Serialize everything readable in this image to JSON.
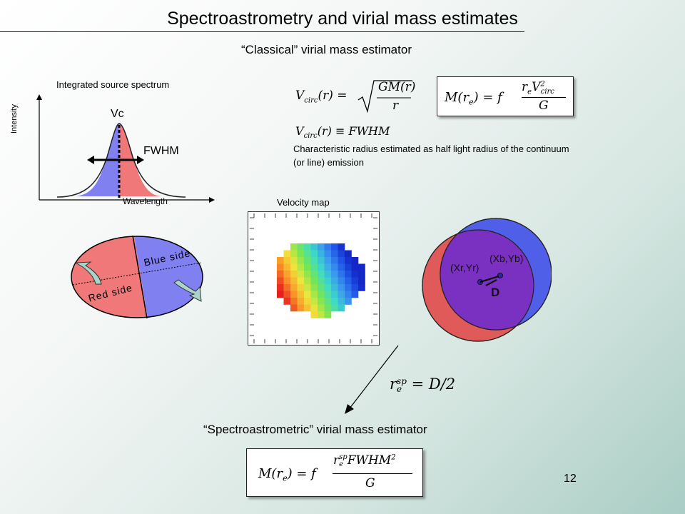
{
  "slide": {
    "title": "Spectroastrometry and virial mass estimates",
    "subtitle": "“Classical” virial mass estimator",
    "page_number": "12"
  },
  "spectrum": {
    "title": "Integrated source spectrum",
    "y_label": "Intensity",
    "x_label": "Wavelength",
    "vc_label": "Vc",
    "fwhm_label": "FWHM"
  },
  "classical": {
    "eq_vcirc_lhs": "V",
    "eq_vcirc_sub": "circ",
    "eq_vcirc_arg": "(r) = ",
    "eq_vcirc_num": "GM(r)",
    "eq_vcirc_den": "r",
    "eq_fwhm": "V",
    "eq_fwhm_sub": "circ",
    "eq_fwhm_rest": "(r) ≡ FWHM",
    "eq_mass_lhs": "M(r",
    "eq_mass_lhs_sub": "e",
    "eq_mass_mid": ") = f",
    "eq_mass_num_r": "r",
    "eq_mass_num_rsub": "e",
    "eq_mass_num_v": "V",
    "eq_mass_num_vsup": "2",
    "eq_mass_num_vsub": "circ",
    "eq_mass_den": "G",
    "note": "Characteristic radius estimated as half light radius of the continuum (or line) emission"
  },
  "velocity_map": {
    "title": "Velocity map"
  },
  "disk": {
    "blue_label": "Blue side",
    "red_label": "Red side"
  },
  "photocenters": {
    "red_label": "(Xr,Yr)",
    "blue_label": "(Xb,Yb)",
    "d_label": "D"
  },
  "spectroastrometric": {
    "eq_r": "r",
    "eq_r_sup": "sp",
    "eq_r_sub": "e",
    "eq_r_rest": " = D/2",
    "label": "“Spectroastrometric” virial mass estimator",
    "eq_mass_lhs": "M(r",
    "eq_mass_lhs_sub": "e",
    "eq_mass_mid": ") = f",
    "eq_mass_num_r": "r",
    "eq_mass_num_rsup": "sp",
    "eq_mass_num_rsub": "e",
    "eq_mass_num_rest": "FWHM",
    "eq_mass_num_sup2": "2",
    "eq_mass_den": "G"
  },
  "colors": {
    "blue_side": "#8080f0",
    "red_side": "#f07878",
    "circle_red": "#e05a5a",
    "circle_blue": "#4f5fe8",
    "overlap": "#7a30c0"
  }
}
